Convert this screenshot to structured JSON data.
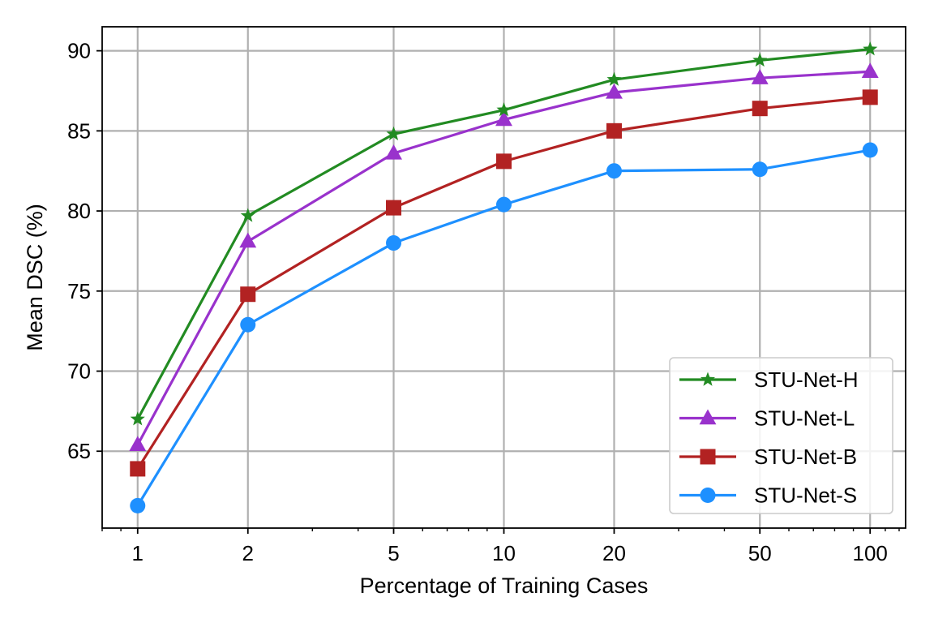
{
  "chart_data": {
    "type": "line",
    "xscale": "log",
    "x": [
      1,
      2,
      5,
      10,
      20,
      50,
      100
    ],
    "xticks": [
      "1",
      "2",
      "5",
      "10",
      "20",
      "50",
      "100"
    ],
    "yticks": [
      "65",
      "70",
      "75",
      "80",
      "85",
      "90"
    ],
    "xlabel": "Percentage of Training Cases",
    "ylabel": "Mean DSC (%)",
    "xlim": [
      0.8,
      125
    ],
    "ylim": [
      60.2,
      91.5
    ],
    "grid": true,
    "legend_position": "lower-right",
    "series": [
      {
        "name": "STU-Net-H",
        "marker": "star",
        "color": "#228b22",
        "values": [
          67.0,
          79.7,
          84.8,
          86.3,
          88.2,
          89.4,
          90.1
        ]
      },
      {
        "name": "STU-Net-L",
        "marker": "triangle",
        "color": "#9932cc",
        "values": [
          65.4,
          78.1,
          83.6,
          85.7,
          87.4,
          88.3,
          88.7
        ]
      },
      {
        "name": "STU-Net-B",
        "marker": "square",
        "color": "#b22222",
        "values": [
          63.9,
          74.8,
          80.2,
          83.1,
          85.0,
          86.4,
          87.1
        ]
      },
      {
        "name": "STU-Net-S",
        "marker": "circle",
        "color": "#1e90ff",
        "values": [
          61.6,
          72.9,
          78.0,
          80.4,
          82.5,
          82.6,
          83.8
        ]
      }
    ]
  }
}
